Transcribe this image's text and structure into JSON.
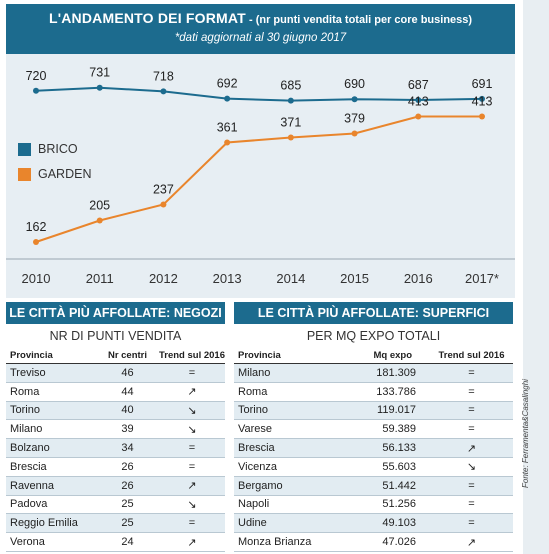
{
  "header": {
    "title": "L'ANDAMENTO DEI FORMAT",
    "subtitle": " - (nr punti vendita totali per core business)",
    "note": "*dati aggiornati al 30 giugno 2017"
  },
  "colors": {
    "brico": "#1c6b8e",
    "garden": "#e9852c",
    "header_bg": "#1c6b8e",
    "chart_bg": "#e7eef3"
  },
  "chart_data": {
    "type": "line",
    "x": [
      "2010",
      "2011",
      "2012",
      "2013",
      "2014",
      "2015",
      "2016",
      "2017*"
    ],
    "series": [
      {
        "name": "BRICO",
        "values": [
          720,
          731,
          718,
          692,
          685,
          690,
          687,
          691
        ]
      },
      {
        "name": "GARDEN",
        "values": [
          162,
          205,
          237,
          361,
          371,
          379,
          413,
          413
        ]
      }
    ],
    "grid": false,
    "legend": "left"
  },
  "table_negozi": {
    "title": "LE CITTÀ PIÙ AFFOLLATE: NEGOZI",
    "subtitle": "NR DI PUNTI VENDITA",
    "headers": [
      "Provincia",
      "Nr centri",
      "Trend sul 2016"
    ],
    "rows": [
      [
        "Treviso",
        "46",
        "="
      ],
      [
        "Roma",
        "44",
        "↗"
      ],
      [
        "Torino",
        "40",
        "↘"
      ],
      [
        "Milano",
        "39",
        "↘"
      ],
      [
        "Bolzano",
        "34",
        "="
      ],
      [
        "Brescia",
        "26",
        "="
      ],
      [
        "Ravenna",
        "26",
        "↗"
      ],
      [
        "Padova",
        "25",
        "↘"
      ],
      [
        "Reggio Emilia",
        "25",
        "="
      ],
      [
        "Verona",
        "24",
        "↗"
      ]
    ]
  },
  "table_superfici": {
    "title": "LE CITTÀ PIÙ AFFOLLATE: SUPERFICI",
    "subtitle": "PER MQ EXPO TOTALI",
    "headers": [
      "Provincia",
      "Mq expo",
      "Trend sul 2016"
    ],
    "rows": [
      [
        "Milano",
        "181.309",
        "="
      ],
      [
        "Roma",
        "133.786",
        "="
      ],
      [
        "Torino",
        "119.017",
        "="
      ],
      [
        "Varese",
        "59.389",
        "="
      ],
      [
        "Brescia",
        "56.133",
        "↗"
      ],
      [
        "Vicenza",
        "55.603",
        "↘"
      ],
      [
        "Bergamo",
        "51.442",
        "="
      ],
      [
        "Napoli",
        "51.256",
        "="
      ],
      [
        "Udine",
        "49.103",
        "="
      ],
      [
        "Monza Brianza",
        "47.026",
        "↗"
      ]
    ]
  },
  "source": "Fonte: Ferramenta&Casalinghi"
}
